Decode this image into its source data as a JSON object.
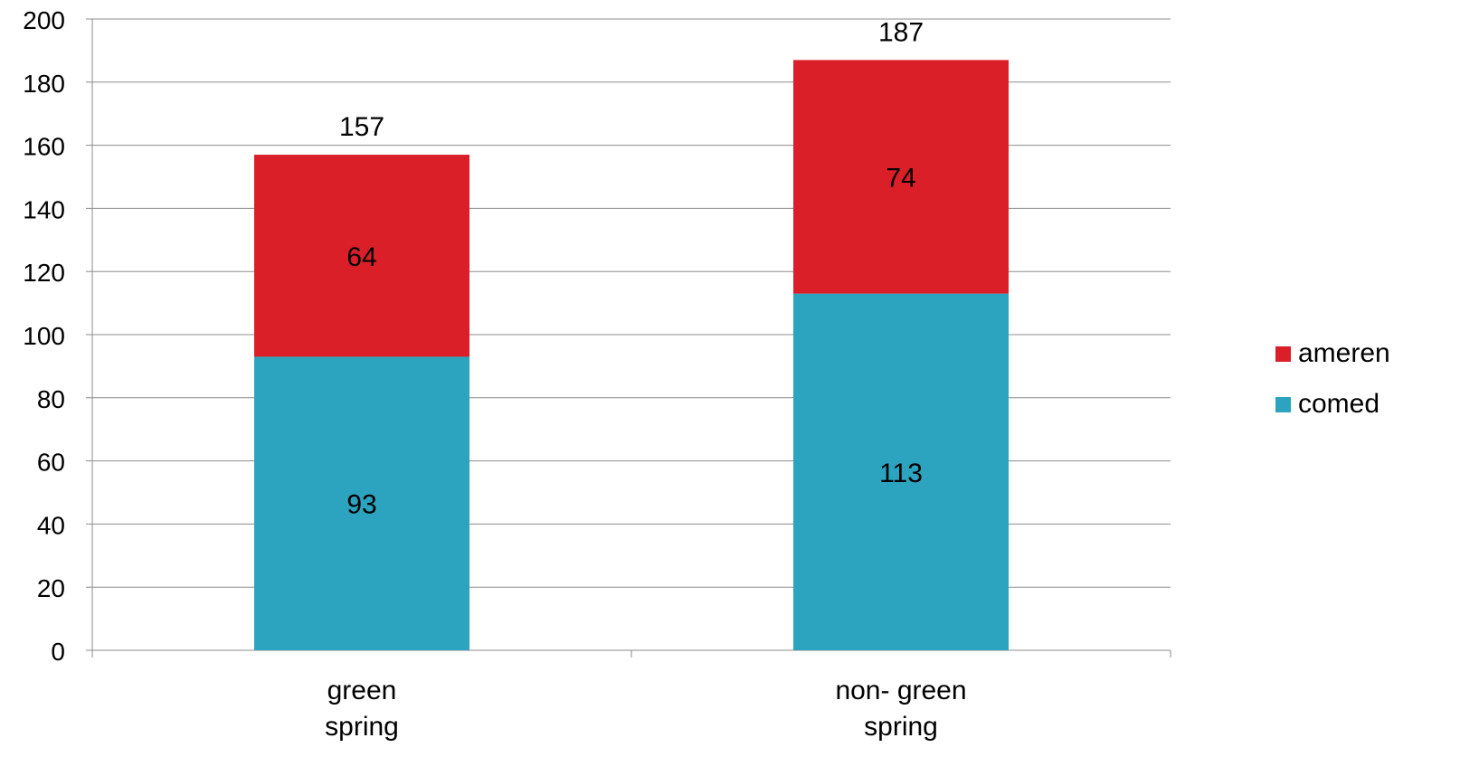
{
  "chart_data": {
    "type": "bar",
    "stacked": true,
    "title": "",
    "xlabel": "",
    "ylabel": "",
    "ylim": [
      0,
      200
    ],
    "yticks": [
      0,
      20,
      40,
      60,
      80,
      100,
      120,
      140,
      160,
      180,
      200
    ],
    "grid": true,
    "legend_position": "right",
    "categories": [
      [
        "green",
        "spring"
      ],
      [
        "non- green",
        "spring"
      ]
    ],
    "series": [
      {
        "name": "comed",
        "values": [
          93,
          113
        ],
        "color": "#2CA3BF"
      },
      {
        "name": "ameren",
        "values": [
          64,
          74
        ],
        "color": "#DA1F28"
      }
    ],
    "totals": [
      157,
      187
    ],
    "legend_order": [
      "ameren",
      "comed"
    ]
  }
}
